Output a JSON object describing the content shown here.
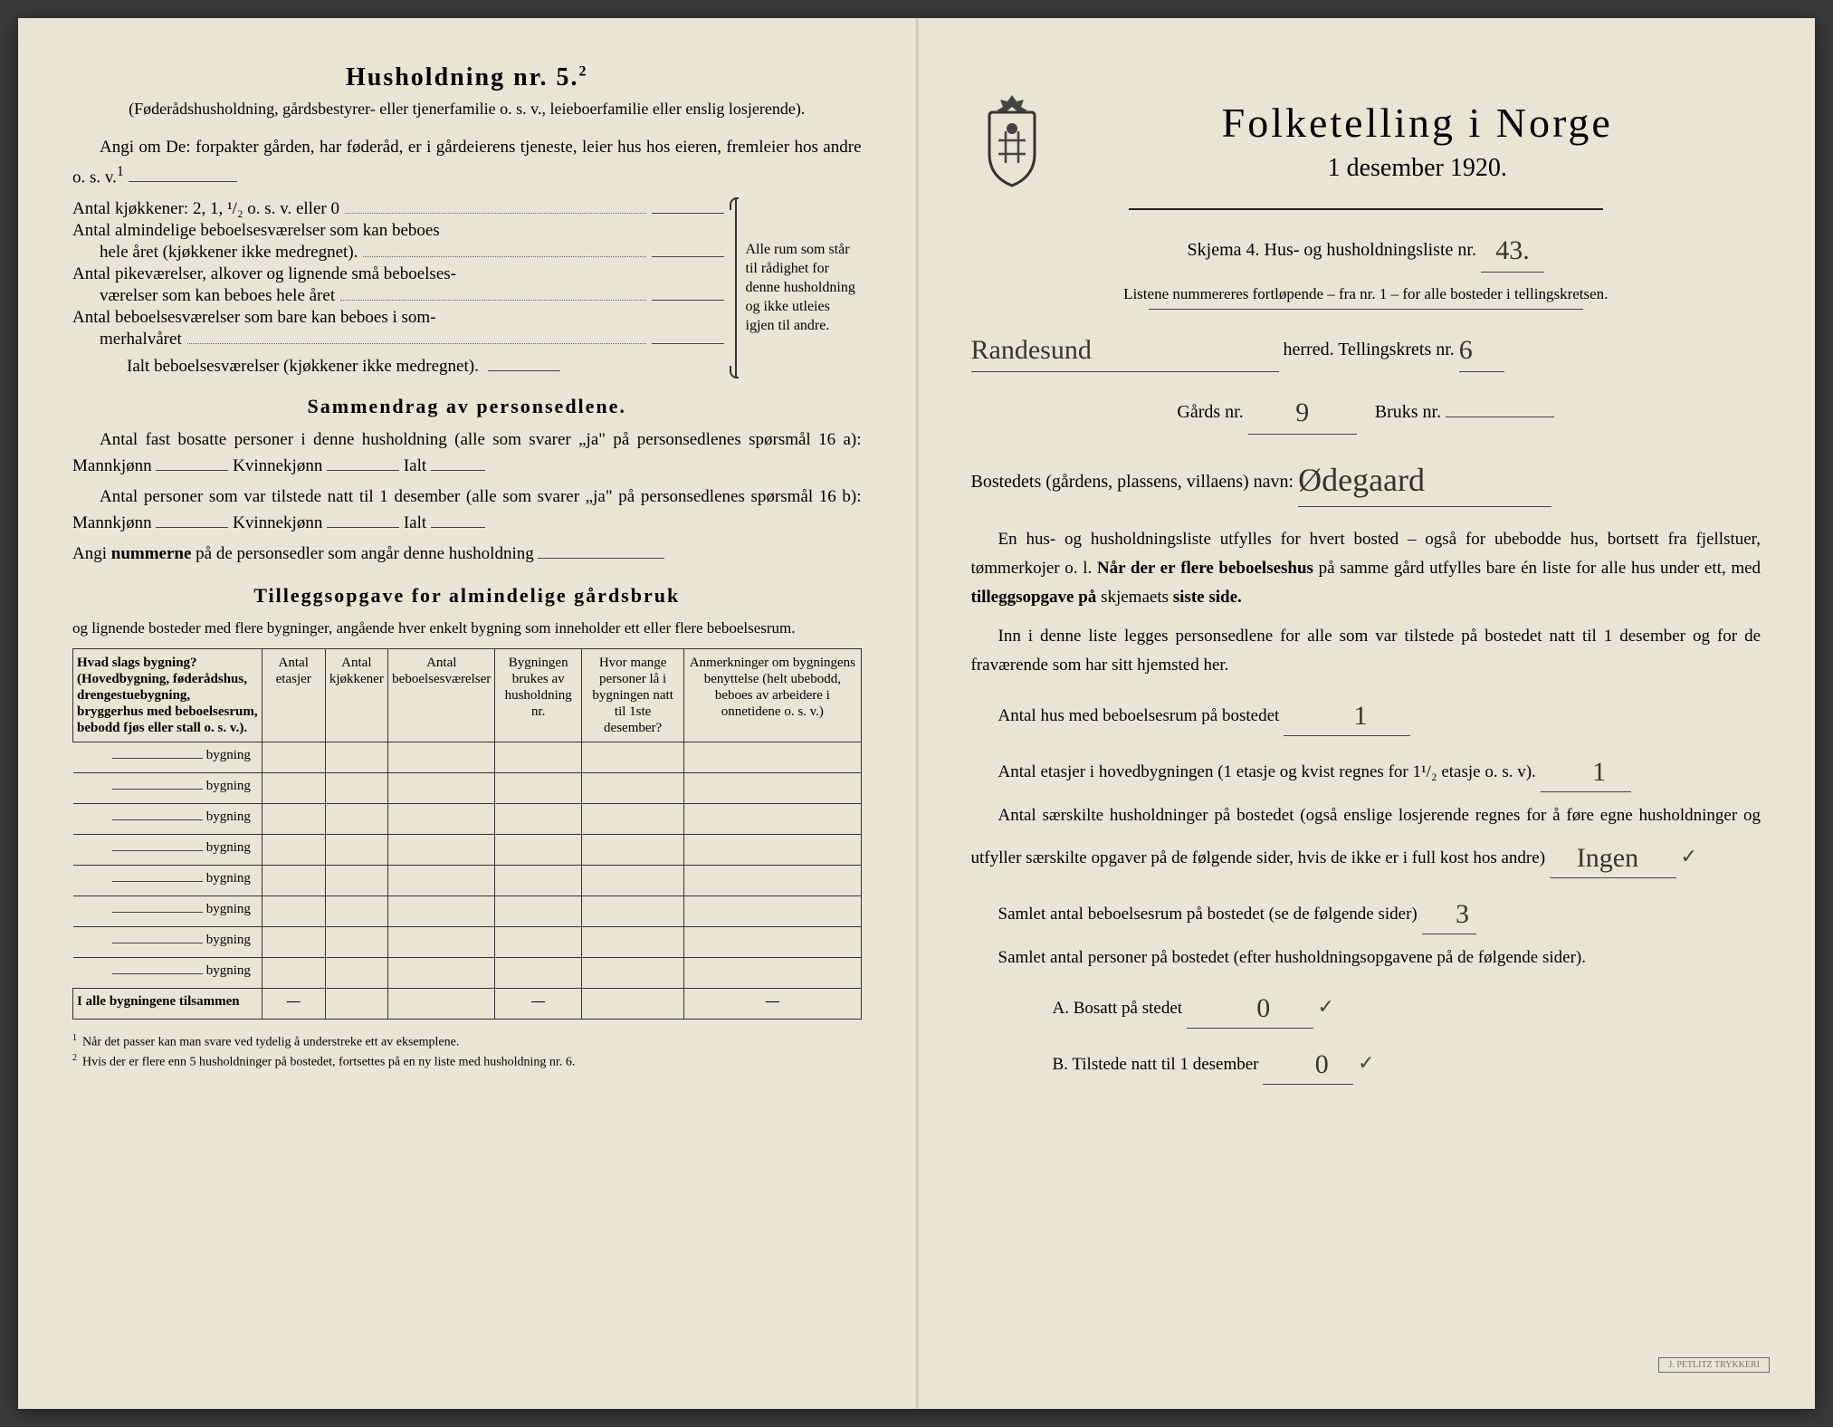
{
  "colors": {
    "paper": "#e8e5d4",
    "ink": "#2a2a26",
    "handwriting": "#3a3326"
  },
  "left": {
    "heading": "Husholdning nr. 5.",
    "heading_sup": "2",
    "sub1": "(Føderådshusholdning, gårdsbestyrer- eller tjenerfamilie o. s. v., leieboerfamilie eller enslig losjerende).",
    "sub2_lead": "Angi om De:",
    "sub2_rest": "forpakter gården, har føderåd, er i gårdeierens tjeneste, leier hus hos eieren, fremleier hos andre o. s. v.",
    "sub2_sup": "1",
    "kitchens": "Antal kjøkkener: 2, 1, ¹/₂ o. s. v. eller 0",
    "rooms1a": "Antal almindelige beboelsesværelser som kan beboes",
    "rooms1b": "hele året (kjøkkener ikke medregnet).",
    "rooms2a": "Antal pikeværelser, alkover og lignende små beboelses-",
    "rooms2b": "værelser som kan beboes hele året",
    "rooms3a": "Antal beboelsesværelser som bare kan beboes i som-",
    "rooms3b": "merhalvåret",
    "rooms_total": "Ialt beboelsesværelser (kjøkkener ikke medregnet).",
    "brace_text": "Alle rum som står til rådighet for denne husholdning og ikke utleies igjen til andre.",
    "summary_h": "Sammendrag av personsedlene.",
    "summary_p1": "Antal fast bosatte personer i denne husholdning (alle som svarer „ja\" på personsedlenes spørsmål 16 a): Mannkjønn",
    "summary_kv": "Kvinnekjønn",
    "summary_ialt": "Ialt",
    "summary_p2": "Antal personer som var tilstede natt til 1 desember (alle som svarer „ja\" på personsedlenes spørsmål 16 b): Mannkjønn",
    "summary_p3a": "Angi",
    "summary_p3b": "nummerne",
    "summary_p3c": "på de personsedler som angår denne husholdning",
    "tillegg_h": "Tilleggsopgave for almindelige gårdsbruk",
    "tillegg_sub": "og lignende bosteder med flere bygninger, angående hver enkelt bygning som inneholder ett eller flere beboelsesrum.",
    "table": {
      "cols": [
        "Hvad slags bygning?\n(Hovedbygning, føderådshus, drengestuebygning, bryggerhus med beboelsesrum, bebodd fjøs eller stall o. s. v.).",
        "Antal etasjer",
        "Antal kjøkkener",
        "Antal beboelsesværelser",
        "Bygningen brukes av husholdning nr.",
        "Hvor mange personer lå i bygningen natt til 1ste desember?",
        "Anmerkninger om bygningens benyttelse (helt ubebodd, beboes av arbeidere i onnetidene o. s. v.)"
      ],
      "row_label": "bygning",
      "row_count": 8,
      "total_row": "I alle bygningene tilsammen"
    },
    "footnote1": "Når det passer kan man svare ved tydelig å understreke ett av eksemplene.",
    "footnote2": "Hvis der er flere enn 5 husholdninger på bostedet, fortsettes på en ny liste med husholdning nr. 6."
  },
  "right": {
    "title": "Folketelling i Norge",
    "date": "1 desember 1920.",
    "skjema": "Skjema 4.  Hus- og husholdningsliste nr.",
    "skjema_nr": "43.",
    "listene": "Listene nummereres fortløpende – fra nr. 1 – for alle bosteder i tellingskretsen.",
    "herred_value": "Randesund",
    "herred_label": "herred.  Tellingskrets nr.",
    "tellingskrets": "6",
    "gards_label": "Gårds nr.",
    "gards_nr": "9",
    "bruks_label": "Bruks nr.",
    "bruks_nr": "",
    "bosted_label": "Bostedets (gårdens, plassens, villaens) navn:",
    "bosted_value": "Ødegaard",
    "para1a": "En hus- og husholdningsliste utfylles for hvert bosted – også for ubebodde hus, bortsett fra fjellstuer, tømmerkojer o. l.",
    "para1b": "Når der er",
    "para1c": "flere beboelseshus",
    "para1d": "på samme gård utfylles bare én liste for alle hus under ett, med",
    "para1e": "tilleggsopgave på",
    "para1f": "skjemaets",
    "para1g": "siste side.",
    "para2": "Inn i denne liste legges personsedlene for alle som var tilstede på bostedet natt til 1 desember og for de fraværende som har sitt hjemsted her.",
    "q1": "Antal hus med beboelsesrum på bostedet",
    "q1_val": "1",
    "q2a": "Antal etasjer i hovedbygningen (1 etasje og kvist regnes for 1¹/₂ etasje o. s. v).",
    "q2_val": "1",
    "q3": "Antal særskilte husholdninger på bostedet (også enslige losjerende regnes for å føre egne husholdninger og utfyller særskilte opgaver på de følgende sider, hvis de ikke er i full kost hos andre)",
    "q3_val": "Ingen",
    "q4": "Samlet antal beboelsesrum på bostedet (se de følgende sider)",
    "q4_val": "3",
    "q5": "Samlet antal personer på bostedet (efter husholdningsopgavene på de følgende sider).",
    "q5a": "A.  Bosatt på stedet",
    "q5a_val": "0",
    "q5b": "B.  Tilstede natt til 1 desember",
    "q5b_val": "0"
  }
}
